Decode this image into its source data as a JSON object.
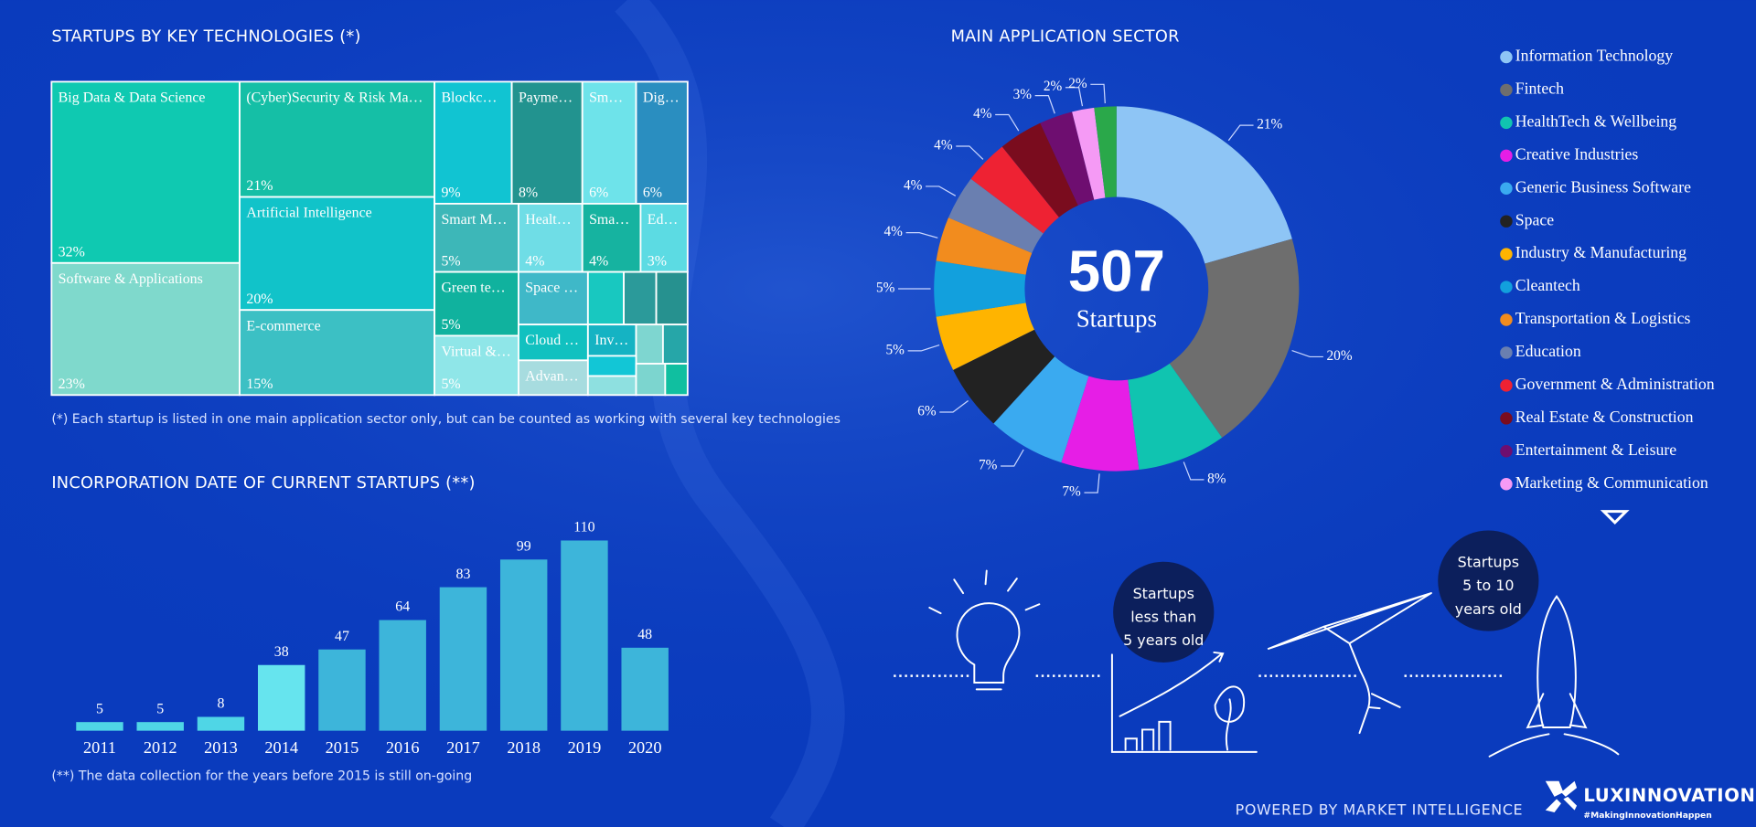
{
  "chart_data": [
    {
      "type": "treemap",
      "title": "STARTUPS BY KEY TECHNOLOGIES (*)",
      "note": "(*) Each startup is listed in one main application sector only, but can be counted as working with several key technologies",
      "categories": [
        "Big Data & Data Science",
        "Software & Applications",
        "(Cyber)Security & Risk Ma…",
        "Artificial Intelligence",
        "E-commerce",
        "Blockc…",
        "Payme…",
        "Sm…",
        "Dig…",
        "Smart M…",
        "Healt…",
        "Sma…",
        "Ed…",
        "Green te…",
        "Virtual &…",
        "Space …",
        "Cloud …",
        "Advan…",
        null,
        null,
        null,
        "Inv…",
        null,
        null,
        null,
        null,
        null,
        null
      ],
      "values": [
        32,
        23,
        21,
        20,
        15,
        9,
        8,
        6,
        6,
        5,
        4,
        4,
        3,
        5,
        5,
        3,
        2,
        2,
        2,
        2,
        2,
        2,
        1,
        1,
        1,
        1,
        1,
        1
      ],
      "value_labels": [
        "32%",
        "23%",
        "21%",
        "20%",
        "15%",
        "9%",
        "8%",
        "6%",
        "6%",
        "5%",
        "4%",
        "4%",
        "3%",
        "5%",
        "5%",
        null,
        null,
        null,
        null,
        null,
        null,
        null,
        null,
        null,
        null,
        null,
        null,
        null
      ],
      "colors": [
        "#0fc9b1",
        "#7fd9cc",
        "#15bfa6",
        "#11c3c9",
        "#3cc0c4",
        "#11c4d2",
        "#22938f",
        "#6ee3ea",
        "#2a8ec0",
        "#3db7b8",
        "#6fdde6",
        "#16b3a0",
        "#5cdbe3",
        "#10b29e",
        "#8fe6e8",
        "#3fb8c8",
        "#11c1c0",
        "#a7dcdf",
        "#18c8c0",
        "#2b9a9a",
        "#26918f",
        "#15b3c3",
        "#7ed6d0",
        "#26a6a8",
        "#12c6d6",
        "#8ee0e0",
        "#7cd5cf",
        "#10bfa0"
      ]
    },
    {
      "type": "pie",
      "title": "MAIN APPLICATION SECTOR",
      "total": 507,
      "total_label": "Startups",
      "legend": "right",
      "categories": [
        "Information Technology",
        "Fintech",
        "HealthTech & Wellbeing",
        "Creative Industries",
        "Generic Business Software",
        "Space",
        "Industry & Manufacturing",
        "Cleantech",
        "Transportation & Logistics",
        "Education",
        "Government & Administration",
        "Real Estate & Construction",
        "Entertainment & Leisure",
        "Marketing & Communication",
        null
      ],
      "values": [
        21,
        20,
        8,
        7,
        7,
        6,
        5,
        5,
        4,
        4,
        4,
        4,
        3,
        2,
        2
      ],
      "value_labels": [
        "21%",
        "20%",
        "8%",
        "7%",
        "7%",
        "6%",
        "5%",
        "5%",
        "4%",
        "4%",
        "4%",
        "4%",
        "3%",
        "2%",
        "2%"
      ],
      "colors": [
        "#8ec5f5",
        "#6e6e6e",
        "#10c4b0",
        "#e61ee6",
        "#3aaaf0",
        "#222222",
        "#ffb400",
        "#12a0dd",
        "#f28c1e",
        "#6a7fb0",
        "#ee2233",
        "#7a0c1e",
        "#6e0e70",
        "#f59af5",
        "#2aa84a"
      ]
    },
    {
      "type": "bar",
      "title": "INCORPORATION DATE OF CURRENT STARTUPS (**)",
      "note": "(**) The data collection for the years before 2015 is still on-going",
      "categories": [
        "2011",
        "2012",
        "2013",
        "2014",
        "2015",
        "2016",
        "2017",
        "2018",
        "2019",
        "2020"
      ],
      "values": [
        5,
        5,
        8,
        38,
        47,
        64,
        83,
        99,
        110,
        48
      ],
      "colors": [
        "#4fd6e6",
        "#4fd6e6",
        "#4fd6e6",
        "#66e4ee",
        "#3db5da",
        "#3db5da",
        "#3db5da",
        "#3db5da",
        "#3db5da",
        "#3db5da"
      ],
      "ylim": [
        0,
        110
      ]
    }
  ],
  "badges": [
    [
      "Startups",
      "less than",
      "5 years old"
    ],
    [
      "Startups",
      "5 to 10",
      "years old"
    ]
  ],
  "footer": {
    "powered_by": "POWERED BY MARKET INTELLIGENCE",
    "logo": "LUXINNOVATION",
    "hashtag": "#MakingInnovationHappen"
  }
}
